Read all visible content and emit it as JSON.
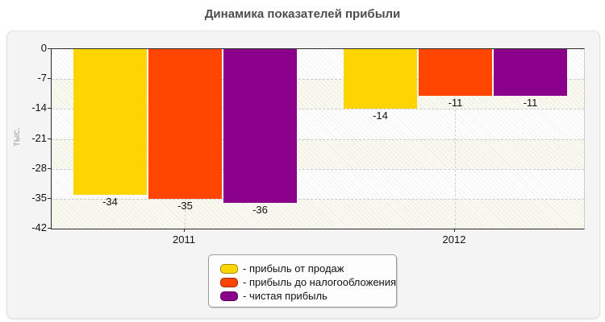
{
  "page": {
    "title": "Динамика показателей прибыли"
  },
  "chart_data": {
    "type": "bar",
    "title": "Динамика показателей прибыли",
    "categories": [
      "2011",
      "2012"
    ],
    "series": [
      {
        "name": "прибыль от продаж",
        "color": "#FFD500",
        "values": [
          -34,
          -14
        ]
      },
      {
        "name": "прибыль до налогообложения",
        "color": "#FF4500",
        "values": [
          -35,
          -11
        ]
      },
      {
        "name": "чистая прибыль",
        "color": "#8B008B",
        "values": [
          -36,
          -11
        ]
      }
    ],
    "value_labels": [
      [
        -34,
        -14
      ],
      [
        -35,
        -11
      ],
      [
        -36,
        -11
      ]
    ],
    "ylabel": "тыс.",
    "ylim": [
      -42,
      0
    ],
    "yticks": [
      0,
      -7,
      -14,
      -21,
      -28,
      -35,
      -42
    ],
    "grid": "dashed-horizontal-and-category-vertical",
    "plot_background": "diagonal-hatch-with-alternating-bands",
    "legend_position": "bottom-center",
    "legend_labels": [
      "- прибыль от продаж",
      "- прибыль до налогообложения",
      "- чистая прибыль"
    ]
  }
}
